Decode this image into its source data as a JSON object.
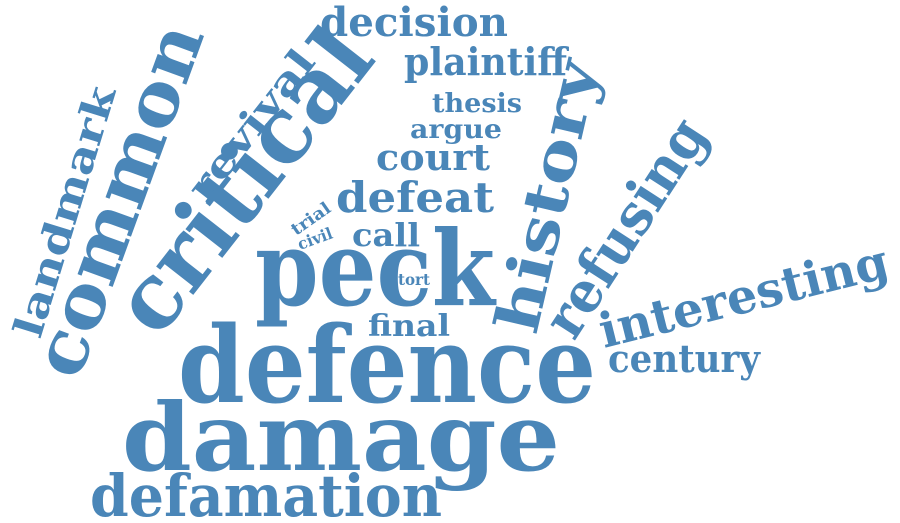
{
  "color": "#4a86b8",
  "words": [
    {
      "key": "damage",
      "text": "damage"
    },
    {
      "key": "defence",
      "text": "defence"
    },
    {
      "key": "defamation",
      "text": "defamation"
    },
    {
      "key": "peck",
      "text": "peck"
    },
    {
      "key": "critical",
      "text": "critical"
    },
    {
      "key": "common",
      "text": "common"
    },
    {
      "key": "history",
      "text": "history"
    },
    {
      "key": "refusing",
      "text": "refusing"
    },
    {
      "key": "interesting",
      "text": "interesting"
    },
    {
      "key": "century",
      "text": "century"
    },
    {
      "key": "landmark",
      "text": "landmark"
    },
    {
      "key": "revival",
      "text": "revival"
    },
    {
      "key": "decision",
      "text": "decision"
    },
    {
      "key": "plaintiff",
      "text": "plaintiff"
    },
    {
      "key": "thesis",
      "text": "thesis"
    },
    {
      "key": "argue",
      "text": "argue"
    },
    {
      "key": "court",
      "text": "court"
    },
    {
      "key": "defeat",
      "text": "defeat"
    },
    {
      "key": "call",
      "text": "call"
    },
    {
      "key": "trial",
      "text": "trial"
    },
    {
      "key": "civil",
      "text": "civil"
    },
    {
      "key": "tort",
      "text": "tort"
    },
    {
      "key": "final",
      "text": "final"
    }
  ]
}
